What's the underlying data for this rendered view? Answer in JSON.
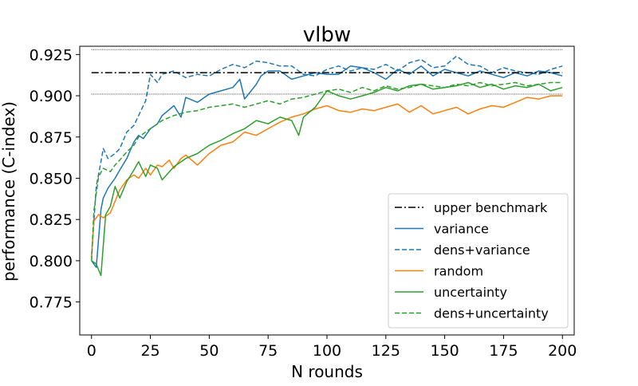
{
  "chart_data": {
    "type": "line",
    "title": "vlbw",
    "xlabel": "N rounds",
    "ylabel": "performance (C-index)",
    "xlim": [
      -5,
      205
    ],
    "ylim": [
      0.755,
      0.93
    ],
    "xticks": [
      0,
      25,
      50,
      75,
      100,
      125,
      150,
      175,
      200
    ],
    "yticks": [
      0.775,
      0.8,
      0.825,
      0.85,
      0.875,
      0.9,
      0.925
    ],
    "ytick_labels": [
      "0.775",
      "0.800",
      "0.825",
      "0.850",
      "0.875",
      "0.900",
      "0.925"
    ],
    "grid": false,
    "legend_position": "lower-right",
    "benchmark": {
      "name": "upper benchmark",
      "value": 0.914,
      "upper_bound": 0.928,
      "lower_bound": 0.901,
      "x_range": [
        0,
        200
      ],
      "color": "#000000"
    },
    "series": [
      {
        "name": "variance",
        "color": "#1f77b4",
        "dash": "solid",
        "x": [
          0,
          2,
          4,
          5,
          7,
          10,
          12,
          15,
          18,
          20,
          22,
          25,
          28,
          30,
          35,
          38,
          40,
          45,
          50,
          55,
          60,
          63,
          65,
          70,
          72,
          75,
          80,
          85,
          90,
          95,
          100,
          105,
          110,
          115,
          120,
          125,
          130,
          135,
          140,
          145,
          150,
          155,
          160,
          165,
          170,
          175,
          180,
          185,
          190,
          195,
          200
        ],
        "y": [
          0.8,
          0.796,
          0.831,
          0.838,
          0.844,
          0.85,
          0.855,
          0.862,
          0.872,
          0.876,
          0.874,
          0.88,
          0.883,
          0.888,
          0.894,
          0.887,
          0.899,
          0.896,
          0.901,
          0.903,
          0.905,
          0.91,
          0.898,
          0.907,
          0.912,
          0.915,
          0.915,
          0.91,
          0.912,
          0.914,
          0.913,
          0.913,
          0.918,
          0.917,
          0.914,
          0.91,
          0.916,
          0.913,
          0.918,
          0.912,
          0.916,
          0.914,
          0.912,
          0.915,
          0.913,
          0.911,
          0.914,
          0.912,
          0.915,
          0.914,
          0.912
        ]
      },
      {
        "name": "dens+variance",
        "color": "#1f77b4",
        "dash": "dashed",
        "x": [
          0,
          2,
          4,
          5,
          7,
          10,
          12,
          15,
          18,
          20,
          23,
          25,
          28,
          30,
          35,
          40,
          45,
          50,
          55,
          60,
          65,
          70,
          75,
          80,
          85,
          90,
          95,
          100,
          105,
          110,
          115,
          120,
          125,
          130,
          135,
          140,
          145,
          150,
          155,
          160,
          165,
          170,
          175,
          180,
          185,
          190,
          195,
          200
        ],
        "y": [
          0.803,
          0.845,
          0.86,
          0.868,
          0.862,
          0.865,
          0.868,
          0.878,
          0.882,
          0.888,
          0.897,
          0.913,
          0.908,
          0.913,
          0.915,
          0.911,
          0.913,
          0.912,
          0.916,
          0.919,
          0.917,
          0.921,
          0.92,
          0.918,
          0.918,
          0.913,
          0.912,
          0.916,
          0.918,
          0.915,
          0.917,
          0.916,
          0.919,
          0.915,
          0.92,
          0.922,
          0.917,
          0.918,
          0.924,
          0.919,
          0.918,
          0.914,
          0.917,
          0.915,
          0.914,
          0.913,
          0.916,
          0.918
        ]
      },
      {
        "name": "random",
        "color": "#ff7f0e",
        "dash": "solid",
        "x": [
          0,
          1,
          3,
          5,
          8,
          10,
          12,
          15,
          18,
          20,
          23,
          25,
          28,
          30,
          33,
          35,
          38,
          40,
          45,
          50,
          55,
          60,
          65,
          70,
          75,
          80,
          85,
          90,
          95,
          100,
          105,
          110,
          115,
          120,
          125,
          130,
          135,
          140,
          145,
          150,
          155,
          160,
          165,
          170,
          175,
          180,
          185,
          190,
          195,
          200
        ],
        "y": [
          0.801,
          0.824,
          0.828,
          0.826,
          0.829,
          0.836,
          0.843,
          0.849,
          0.852,
          0.85,
          0.856,
          0.852,
          0.858,
          0.857,
          0.861,
          0.856,
          0.862,
          0.864,
          0.858,
          0.865,
          0.87,
          0.872,
          0.878,
          0.876,
          0.88,
          0.884,
          0.887,
          0.889,
          0.892,
          0.894,
          0.891,
          0.89,
          0.892,
          0.891,
          0.893,
          0.895,
          0.89,
          0.894,
          0.889,
          0.891,
          0.893,
          0.889,
          0.892,
          0.894,
          0.893,
          0.896,
          0.899,
          0.898,
          0.9,
          0.9
        ]
      },
      {
        "name": "uncertainty",
        "color": "#2ca02c",
        "dash": "solid",
        "x": [
          0,
          2,
          4,
          6,
          8,
          10,
          12,
          15,
          18,
          20,
          23,
          25,
          28,
          30,
          35,
          40,
          45,
          50,
          55,
          60,
          65,
          70,
          75,
          80,
          85,
          88,
          90,
          95,
          100,
          105,
          110,
          115,
          120,
          125,
          130,
          135,
          140,
          145,
          150,
          155,
          160,
          165,
          170,
          175,
          180,
          185,
          190,
          195,
          200
        ],
        "y": [
          0.8,
          0.798,
          0.791,
          0.828,
          0.833,
          0.845,
          0.838,
          0.848,
          0.855,
          0.86,
          0.851,
          0.858,
          0.856,
          0.849,
          0.857,
          0.862,
          0.865,
          0.87,
          0.873,
          0.877,
          0.88,
          0.885,
          0.883,
          0.887,
          0.885,
          0.876,
          0.887,
          0.893,
          0.903,
          0.9,
          0.898,
          0.9,
          0.902,
          0.905,
          0.903,
          0.906,
          0.907,
          0.904,
          0.905,
          0.906,
          0.908,
          0.905,
          0.907,
          0.904,
          0.906,
          0.905,
          0.907,
          0.903,
          0.905
        ]
      },
      {
        "name": "dens+uncertainty",
        "color": "#2ca02c",
        "dash": "dashed",
        "x": [
          0,
          1,
          3,
          5,
          8,
          10,
          12,
          15,
          18,
          20,
          25,
          30,
          35,
          40,
          45,
          50,
          55,
          60,
          65,
          70,
          75,
          80,
          85,
          90,
          95,
          100,
          105,
          110,
          115,
          120,
          125,
          130,
          135,
          140,
          145,
          150,
          155,
          160,
          165,
          170,
          175,
          180,
          185,
          190,
          195,
          200
        ],
        "y": [
          0.8,
          0.83,
          0.851,
          0.856,
          0.854,
          0.858,
          0.861,
          0.866,
          0.87,
          0.875,
          0.88,
          0.885,
          0.888,
          0.89,
          0.891,
          0.893,
          0.894,
          0.895,
          0.893,
          0.895,
          0.897,
          0.895,
          0.898,
          0.899,
          0.901,
          0.903,
          0.904,
          0.902,
          0.905,
          0.903,
          0.906,
          0.904,
          0.905,
          0.907,
          0.906,
          0.905,
          0.907,
          0.906,
          0.908,
          0.906,
          0.907,
          0.908,
          0.906,
          0.907,
          0.908,
          0.908
        ]
      }
    ]
  }
}
